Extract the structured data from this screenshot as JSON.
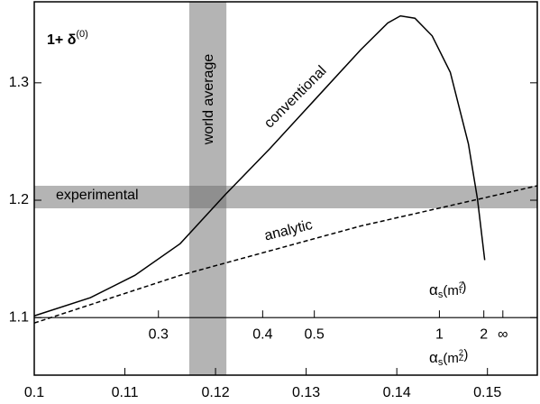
{
  "chart_data": {
    "type": "line",
    "title_parts": [
      "1+ δ",
      "(0)"
    ],
    "xlim": [
      0.1,
      0.1555
    ],
    "ylim": [
      1.051,
      1.369
    ],
    "xticks": [
      {
        "value": 0.1,
        "label": "0.1"
      },
      {
        "value": 0.11,
        "label": "0.11"
      },
      {
        "value": 0.12,
        "label": "0.12"
      },
      {
        "value": 0.13,
        "label": "0.13"
      },
      {
        "value": 0.14,
        "label": "0.14"
      },
      {
        "value": 0.15,
        "label": "0.15"
      }
    ],
    "yticks": [
      {
        "value": 1.1,
        "label": "1.1"
      },
      {
        "value": 1.2,
        "label": "1.2"
      },
      {
        "value": 1.3,
        "label": "1.3"
      }
    ],
    "xlabel_parts": [
      "α",
      "s",
      "(m",
      "2",
      "Z",
      ")"
    ],
    "x2label_parts": [
      "α",
      "s",
      "(m",
      "2",
      "τ",
      ")"
    ],
    "x2axis_y": 1.1,
    "x2ticks": [
      {
        "value": 0.3,
        "label": "0.3",
        "position": 0.1137
      },
      {
        "value": 0.4,
        "label": "0.4",
        "position": 0.1252
      },
      {
        "value": 0.5,
        "label": "0.5",
        "position": 0.1309
      },
      {
        "value": 1,
        "label": "1",
        "position": 0.1447
      },
      {
        "value": 2,
        "label": "2",
        "position": 0.1496
      },
      {
        "label": "∞",
        "position": 0.1517
      }
    ],
    "bands": [
      {
        "axis": "x",
        "range": [
          0.1171,
          0.1212
        ]
      },
      {
        "axis": "y",
        "range": [
          1.1931,
          1.2123
        ]
      }
    ],
    "series": [
      {
        "name": "conventional",
        "color": "#000000",
        "dash": false,
        "x": [
          0.1,
          0.1062,
          0.1111,
          0.1161,
          0.1211,
          0.126,
          0.131,
          0.136,
          0.139,
          0.1404,
          0.142,
          0.1439,
          0.1459,
          0.1479,
          0.1489,
          0.1497
        ],
        "values": [
          1.1015,
          1.117,
          1.136,
          1.163,
          1.205,
          1.244,
          1.286,
          1.328,
          1.351,
          1.357,
          1.355,
          1.34,
          1.309,
          1.248,
          1.201,
          1.149
        ]
      },
      {
        "name": "analytic",
        "color": "#000000",
        "dash": true,
        "x": [
          0.1,
          0.1161,
          0.136,
          0.1555
        ],
        "values": [
          1.0954,
          1.136,
          1.178,
          1.2123
        ]
      }
    ],
    "annotations": [
      "world average",
      "conventional",
      "experimental",
      "analytic"
    ]
  }
}
